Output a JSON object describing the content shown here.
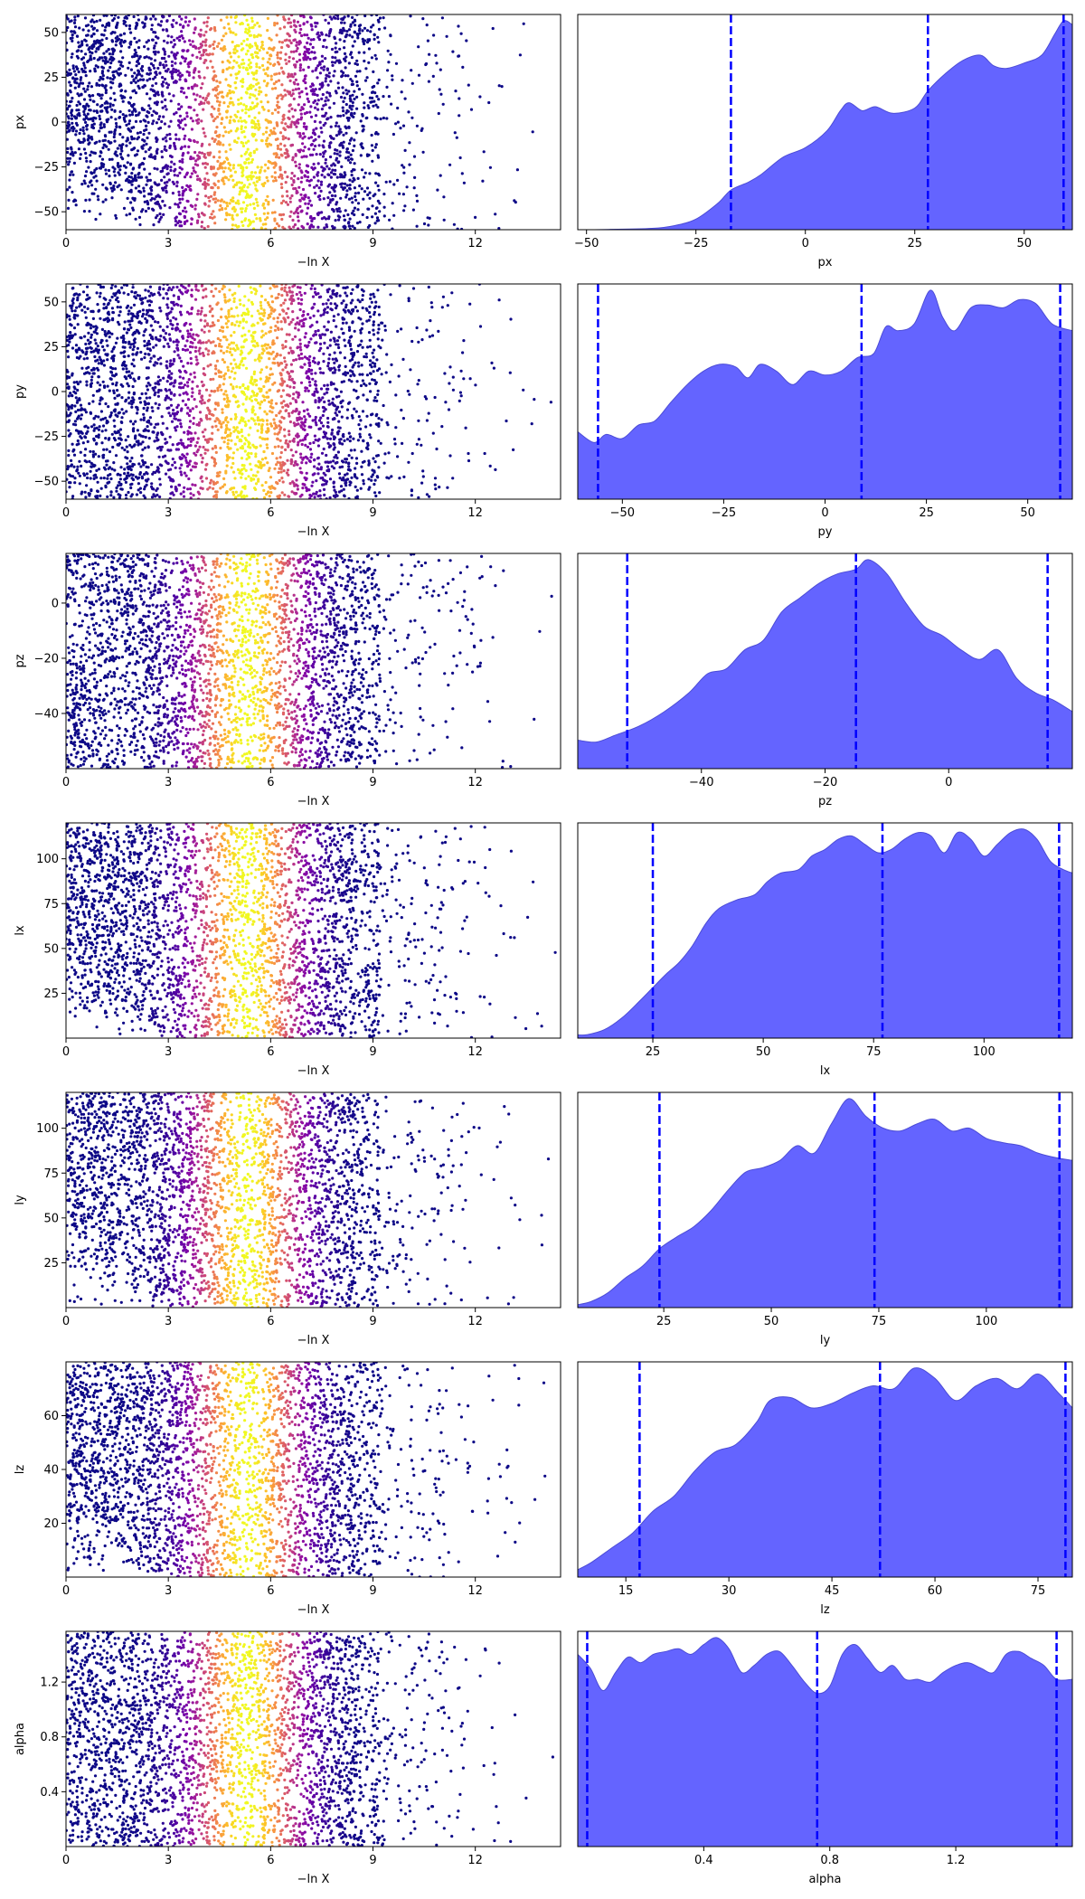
{
  "figure_type": "nested sampling trace plot",
  "colormap": "plasma",
  "kde_fill_color": "#6464ff",
  "quantile_line_color": "#0000ff",
  "chart_data": [
    {
      "type": "scatter",
      "xlabel": "−ln X",
      "ylabel": "px",
      "xlim": [
        0,
        14.5
      ],
      "ylim": [
        -60,
        60
      ],
      "xticks": [
        0,
        3,
        6,
        9,
        12
      ],
      "yticks": [
        -50,
        -25,
        0,
        25,
        50
      ],
      "ytick_labels": [
        "−50",
        "−25",
        "0",
        "25",
        "50"
      ],
      "ymin_fraction": [
        0,
        3,
        0.0,
        1.0
      ],
      "samples": 9000,
      "note_colormap_peak_at": 5.3
    },
    {
      "type": "area",
      "xlabel": "px",
      "xlim": [
        -52,
        61
      ],
      "xticks": [
        -50,
        -25,
        0,
        25,
        50
      ],
      "xtick_labels": [
        "−50",
        "−25",
        "0",
        "25",
        "50"
      ],
      "quantiles": [
        -17,
        28,
        59
      ],
      "x": [
        -52,
        -45,
        -35,
        -30,
        -25,
        -20,
        -17,
        -13,
        -10,
        -5,
        0,
        5,
        8,
        10,
        13,
        16,
        20,
        25,
        28,
        32,
        36,
        40,
        43,
        46,
        50,
        54,
        57,
        59,
        61
      ],
      "y": [
        0,
        0.002,
        0.01,
        0.03,
        0.08,
        0.2,
        0.3,
        0.36,
        0.42,
        0.55,
        0.62,
        0.75,
        0.9,
        0.96,
        0.9,
        0.93,
        0.88,
        0.92,
        1.05,
        1.18,
        1.28,
        1.32,
        1.24,
        1.22,
        1.26,
        1.32,
        1.48,
        1.58,
        1.55
      ]
    },
    {
      "type": "scatter",
      "xlabel": "−ln X",
      "ylabel": "py",
      "xlim": [
        0,
        14.5
      ],
      "ylim": [
        -60,
        60
      ],
      "xticks": [
        0,
        3,
        6,
        9,
        12
      ],
      "yticks": [
        -50,
        -25,
        0,
        25,
        50
      ],
      "ytick_labels": [
        "−50",
        "−25",
        "0",
        "25",
        "50"
      ],
      "ymin_fraction": [
        0,
        0,
        0.0,
        0.0
      ],
      "samples": 9000
    },
    {
      "type": "area",
      "xlabel": "py",
      "xlim": [
        -61,
        61
      ],
      "xticks": [
        -50,
        -25,
        0,
        25,
        50
      ],
      "xtick_labels": [
        "−50",
        "−25",
        "0",
        "25",
        "50"
      ],
      "quantiles": [
        -56,
        9,
        58
      ],
      "x": [
        -61,
        -57,
        -54,
        -50,
        -46,
        -42,
        -38,
        -34,
        -30,
        -26,
        -22,
        -19,
        -16,
        -12,
        -8,
        -4,
        0,
        4,
        8,
        12,
        15,
        18,
        22,
        26,
        29,
        32,
        36,
        40,
        44,
        48,
        52,
        56,
        61
      ],
      "y": [
        0.5,
        0.42,
        0.48,
        0.45,
        0.55,
        0.58,
        0.72,
        0.85,
        0.95,
        1.0,
        0.98,
        0.9,
        1.0,
        0.95,
        0.85,
        0.95,
        0.92,
        0.95,
        1.05,
        1.08,
        1.28,
        1.25,
        1.3,
        1.55,
        1.35,
        1.25,
        1.42,
        1.44,
        1.42,
        1.48,
        1.45,
        1.3,
        1.25
      ]
    },
    {
      "type": "scatter",
      "xlabel": "−ln X",
      "ylabel": "pz",
      "xlim": [
        0,
        14.5
      ],
      "ylim": [
        -60,
        18
      ],
      "xticks": [
        0,
        3,
        6,
        9,
        12
      ],
      "yticks": [
        -40,
        -20,
        0
      ],
      "ytick_labels": [
        "−40",
        "−20",
        "0"
      ],
      "ymin_fraction": [
        0,
        0,
        0.0,
        0.0
      ],
      "samples": 9000
    },
    {
      "type": "area",
      "xlabel": "pz",
      "xlim": [
        -60,
        20
      ],
      "xticks": [
        -40,
        -20,
        0
      ],
      "xtick_labels": [
        "−40",
        "−20",
        "0"
      ],
      "quantiles": [
        -52,
        -15,
        16
      ],
      "x": [
        -60,
        -57,
        -54,
        -50,
        -46,
        -42,
        -39,
        -36,
        -33,
        -30,
        -27,
        -24,
        -21,
        -18,
        -15,
        -13,
        -10,
        -7,
        -4,
        -1,
        2,
        5,
        8,
        11,
        14,
        17,
        20
      ],
      "y": [
        0.3,
        0.28,
        0.35,
        0.45,
        0.6,
        0.8,
        1.0,
        1.05,
        1.25,
        1.35,
        1.65,
        1.8,
        1.95,
        2.05,
        2.1,
        2.2,
        2.05,
        1.75,
        1.5,
        1.4,
        1.25,
        1.15,
        1.25,
        0.95,
        0.8,
        0.72,
        0.6
      ]
    },
    {
      "type": "scatter",
      "xlabel": "−ln X",
      "ylabel": "lx",
      "xlim": [
        0,
        14.5
      ],
      "ylim": [
        0,
        120
      ],
      "xticks": [
        0,
        3,
        6,
        9,
        12
      ],
      "yticks": [
        25,
        50,
        75,
        100
      ],
      "ytick_labels": [
        "25",
        "50",
        "75",
        "100"
      ],
      "ymin_fraction": [
        0,
        3,
        0.0,
        1.0
      ],
      "samples": 9000
    },
    {
      "type": "area",
      "xlabel": "lx",
      "xlim": [
        8,
        120
      ],
      "xticks": [
        25,
        50,
        75,
        100
      ],
      "xtick_labels": [
        "25",
        "50",
        "75",
        "100"
      ],
      "quantiles": [
        25,
        77,
        117
      ],
      "x": [
        8,
        10,
        14,
        18,
        22,
        25,
        28,
        31,
        34,
        37,
        40,
        44,
        48,
        51,
        54,
        58,
        61,
        64,
        67,
        70,
        73,
        76,
        79,
        82,
        85,
        88,
        91,
        94,
        97,
        100,
        103,
        106,
        109,
        112,
        115,
        118,
        120
      ],
      "y": [
        0.02,
        0.02,
        0.05,
        0.12,
        0.22,
        0.3,
        0.38,
        0.45,
        0.55,
        0.68,
        0.77,
        0.82,
        0.85,
        0.93,
        0.98,
        1.0,
        1.08,
        1.12,
        1.18,
        1.2,
        1.15,
        1.1,
        1.12,
        1.18,
        1.22,
        1.2,
        1.1,
        1.22,
        1.18,
        1.08,
        1.15,
        1.22,
        1.24,
        1.18,
        1.05,
        1.0,
        0.98
      ]
    },
    {
      "type": "scatter",
      "xlabel": "−ln X",
      "ylabel": "ly",
      "xlim": [
        0,
        14.5
      ],
      "ylim": [
        0,
        120
      ],
      "xticks": [
        0,
        3,
        6,
        9,
        12
      ],
      "yticks": [
        25,
        50,
        75,
        100
      ],
      "ytick_labels": [
        "25",
        "50",
        "75",
        "100"
      ],
      "ymin_fraction": [
        0,
        3,
        0.0,
        1.0
      ],
      "samples": 9000
    },
    {
      "type": "area",
      "xlabel": "ly",
      "xlim": [
        5,
        120
      ],
      "xticks": [
        25,
        50,
        75,
        100
      ],
      "xtick_labels": [
        "25",
        "50",
        "75",
        "100"
      ],
      "quantiles": [
        24,
        74,
        117
      ],
      "x": [
        5,
        8,
        12,
        16,
        20,
        24,
        28,
        32,
        36,
        40,
        44,
        48,
        52,
        56,
        60,
        64,
        68,
        72,
        76,
        80,
        84,
        88,
        92,
        96,
        100,
        104,
        108,
        112,
        116,
        120
      ],
      "y": [
        0.02,
        0.04,
        0.1,
        0.2,
        0.28,
        0.4,
        0.48,
        0.55,
        0.66,
        0.8,
        0.92,
        0.95,
        1.0,
        1.1,
        1.05,
        1.25,
        1.42,
        1.3,
        1.22,
        1.2,
        1.25,
        1.28,
        1.2,
        1.22,
        1.15,
        1.12,
        1.1,
        1.05,
        1.02,
        1.0
      ]
    },
    {
      "type": "scatter",
      "xlabel": "−ln X",
      "ylabel": "lz",
      "xlim": [
        0,
        14.5
      ],
      "ylim": [
        0,
        80
      ],
      "xticks": [
        0,
        3,
        6,
        9,
        12
      ],
      "yticks": [
        20,
        40,
        60
      ],
      "ytick_labels": [
        "20",
        "40",
        "60"
      ],
      "ymin_fraction": [
        0,
        3,
        0.0,
        1.0
      ],
      "samples": 9000
    },
    {
      "type": "area",
      "xlabel": "lz",
      "xlim": [
        8,
        80
      ],
      "xticks": [
        15,
        30,
        45,
        60,
        75
      ],
      "xtick_labels": [
        "15",
        "30",
        "45",
        "60",
        "75"
      ],
      "quantiles": [
        17,
        52,
        79
      ],
      "x": [
        8,
        10,
        13,
        16,
        19,
        22,
        25,
        28,
        31,
        34,
        36,
        39,
        42,
        45,
        48,
        51,
        54,
        57,
        60,
        63,
        66,
        69,
        72,
        75,
        78,
        80
      ],
      "y": [
        0.05,
        0.1,
        0.2,
        0.3,
        0.45,
        0.55,
        0.72,
        0.85,
        0.9,
        1.05,
        1.2,
        1.22,
        1.15,
        1.18,
        1.25,
        1.3,
        1.28,
        1.42,
        1.35,
        1.2,
        1.3,
        1.35,
        1.28,
        1.38,
        1.25,
        1.15
      ]
    },
    {
      "type": "scatter",
      "xlabel": "−ln X",
      "ylabel": "alpha",
      "xlim": [
        0,
        14.5
      ],
      "ylim": [
        0,
        1.57
      ],
      "xticks": [
        0,
        3,
        6,
        9,
        12
      ],
      "yticks": [
        0.4,
        0.8,
        1.2
      ],
      "ytick_labels": [
        "0.4",
        "0.8",
        "1.2"
      ],
      "ymin_fraction": [
        0,
        0,
        0.0,
        0.0
      ],
      "samples": 9000
    },
    {
      "type": "area",
      "xlabel": "alpha",
      "xlim": [
        0,
        1.57
      ],
      "xticks": [
        0.4,
        0.8,
        1.2
      ],
      "xtick_labels": [
        "0.4",
        "0.8",
        "1.2"
      ],
      "quantiles": [
        0.03,
        0.76,
        1.52
      ],
      "x": [
        0,
        0.04,
        0.08,
        0.12,
        0.16,
        0.2,
        0.24,
        0.28,
        0.32,
        0.36,
        0.4,
        0.44,
        0.48,
        0.52,
        0.56,
        0.6,
        0.64,
        0.68,
        0.72,
        0.76,
        0.8,
        0.84,
        0.88,
        0.92,
        0.96,
        1.0,
        1.04,
        1.08,
        1.12,
        1.16,
        1.2,
        1.24,
        1.28,
        1.32,
        1.36,
        1.4,
        1.44,
        1.48,
        1.52,
        1.57
      ],
      "y": [
        1.38,
        1.28,
        1.12,
        1.25,
        1.36,
        1.32,
        1.38,
        1.4,
        1.42,
        1.38,
        1.45,
        1.5,
        1.42,
        1.25,
        1.3,
        1.38,
        1.4,
        1.3,
        1.18,
        1.1,
        1.15,
        1.38,
        1.45,
        1.35,
        1.25,
        1.3,
        1.2,
        1.2,
        1.18,
        1.25,
        1.3,
        1.32,
        1.28,
        1.25,
        1.38,
        1.4,
        1.35,
        1.3,
        1.2,
        1.2
      ]
    }
  ]
}
